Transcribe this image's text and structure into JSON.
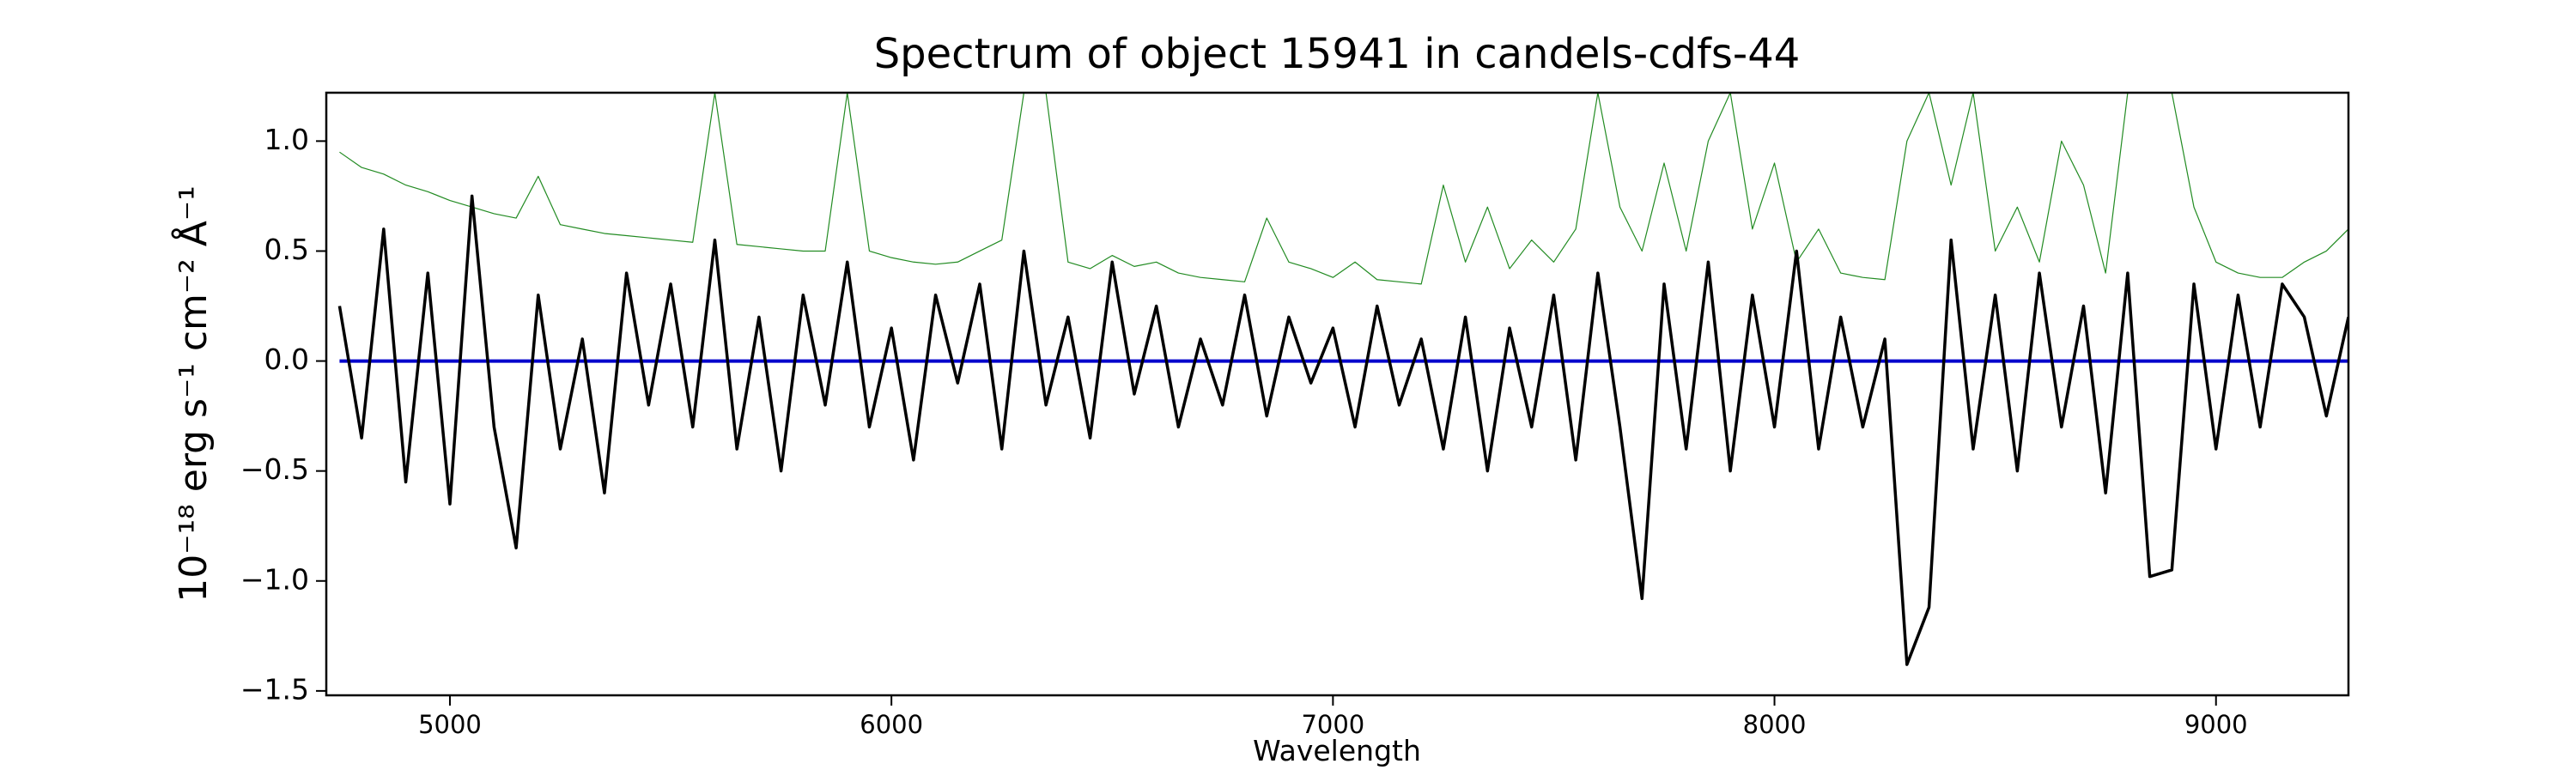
{
  "chart_data": {
    "type": "line",
    "title": "Spectrum of object 15941 in candels-cdfs-44",
    "x_label": "Wavelength",
    "y_label": "10⁻¹⁸ erg s⁻¹ cm⁻² Å⁻¹",
    "x": [
      4750,
      4800,
      4850,
      4900,
      4950,
      5000,
      5050,
      5100,
      5150,
      5200,
      5250,
      5300,
      5350,
      5400,
      5450,
      5500,
      5550,
      5600,
      5650,
      5700,
      5750,
      5800,
      5850,
      5900,
      5950,
      6000,
      6050,
      6100,
      6150,
      6200,
      6250,
      6300,
      6350,
      6400,
      6450,
      6500,
      6550,
      6600,
      6650,
      6700,
      6750,
      6800,
      6850,
      6900,
      6950,
      7000,
      7050,
      7100,
      7150,
      7200,
      7250,
      7300,
      7350,
      7400,
      7450,
      7500,
      7550,
      7600,
      7650,
      7700,
      7750,
      7800,
      7850,
      7900,
      7950,
      8000,
      8050,
      8100,
      8150,
      8200,
      8250,
      8300,
      8350,
      8400,
      8450,
      8500,
      8550,
      8600,
      8650,
      8700,
      8750,
      8800,
      8850,
      8900,
      8950,
      9000,
      9050,
      9100,
      9150,
      9200,
      9250,
      9300
    ],
    "series": [
      {
        "color": "#228b22",
        "width": 1.2,
        "values": [
          0.95,
          0.88,
          0.85,
          0.8,
          0.77,
          0.73,
          0.7,
          0.67,
          0.65,
          0.84,
          0.62,
          0.6,
          0.58,
          0.57,
          0.56,
          0.55,
          0.54,
          1.22,
          0.53,
          0.52,
          0.51,
          0.5,
          0.5,
          1.22,
          0.5,
          0.47,
          0.45,
          0.44,
          0.45,
          0.5,
          0.55,
          1.22,
          1.22,
          0.45,
          0.42,
          0.48,
          0.43,
          0.45,
          0.4,
          0.38,
          0.37,
          0.36,
          0.65,
          0.45,
          0.42,
          0.38,
          0.45,
          0.37,
          0.36,
          0.35,
          0.8,
          0.45,
          0.7,
          0.42,
          0.55,
          0.45,
          0.6,
          1.22,
          0.7,
          0.5,
          0.9,
          0.5,
          1.0,
          1.22,
          0.6,
          0.9,
          0.45,
          0.6,
          0.4,
          0.38,
          0.37,
          1.0,
          1.22,
          0.8,
          1.22,
          0.5,
          0.7,
          0.45,
          1.0,
          0.8,
          0.4,
          1.22,
          1.22,
          1.22,
          0.7,
          0.45,
          0.4,
          0.38,
          0.38,
          0.45,
          0.5,
          0.6
        ]
      },
      {
        "color": "#0000cc",
        "width": 4,
        "values": [
          0,
          0,
          0,
          0,
          0,
          0,
          0,
          0,
          0,
          0,
          0,
          0,
          0,
          0,
          0,
          0,
          0,
          0,
          0,
          0,
          0,
          0,
          0,
          0,
          0,
          0,
          0,
          0,
          0,
          0,
          0,
          0,
          0,
          0,
          0,
          0,
          0,
          0,
          0,
          0,
          0,
          0,
          0,
          0,
          0,
          0,
          0,
          0,
          0,
          0,
          0,
          0,
          0,
          0,
          0,
          0,
          0,
          0,
          0,
          0,
          0,
          0,
          0,
          0,
          0,
          0,
          0,
          0,
          0,
          0,
          0,
          0,
          0,
          0,
          0,
          0,
          0,
          0,
          0,
          0,
          0,
          0,
          0,
          0,
          0,
          0,
          0,
          0,
          0,
          0,
          0,
          0
        ]
      },
      {
        "color": "#000000",
        "width": 3.5,
        "values": [
          0.25,
          -0.35,
          0.6,
          -0.55,
          0.4,
          -0.65,
          0.75,
          -0.3,
          -0.85,
          0.3,
          -0.4,
          0.1,
          -0.6,
          0.4,
          -0.2,
          0.35,
          -0.3,
          0.55,
          -0.4,
          0.2,
          -0.5,
          0.3,
          -0.2,
          0.45,
          -0.3,
          0.15,
          -0.45,
          0.3,
          -0.1,
          0.35,
          -0.4,
          0.5,
          -0.2,
          0.2,
          -0.35,
          0.45,
          -0.15,
          0.25,
          -0.3,
          0.1,
          -0.2,
          0.3,
          -0.25,
          0.2,
          -0.1,
          0.15,
          -0.3,
          0.25,
          -0.2,
          0.1,
          -0.4,
          0.2,
          -0.5,
          0.15,
          -0.3,
          0.3,
          -0.45,
          0.4,
          -0.3,
          -1.08,
          0.35,
          -0.4,
          0.45,
          -0.5,
          0.3,
          -0.3,
          0.5,
          -0.4,
          0.2,
          -0.3,
          0.1,
          -1.38,
          -1.12,
          0.55,
          -0.4,
          0.3,
          -0.5,
          0.4,
          -0.3,
          0.25,
          -0.6,
          0.4,
          -0.98,
          -0.95,
          0.35,
          -0.4,
          0.3,
          -0.3,
          0.35,
          0.2,
          -0.25,
          0.2
        ]
      }
    ],
    "xlim": [
      4720,
      9300
    ],
    "ylim": [
      -1.52,
      1.22
    ],
    "xticks": [
      5000,
      6000,
      7000,
      8000,
      9000
    ],
    "yticks": [
      {
        "value": -1.5,
        "label": "−1.5"
      },
      {
        "value": -1.0,
        "label": "−1.0"
      },
      {
        "value": -0.5,
        "label": "−0.5"
      },
      {
        "value": 0.0,
        "label": "0.0"
      },
      0.5,
      {
        "value": 1.0,
        "label": "1.0"
      }
    ],
    "grid": false
  }
}
